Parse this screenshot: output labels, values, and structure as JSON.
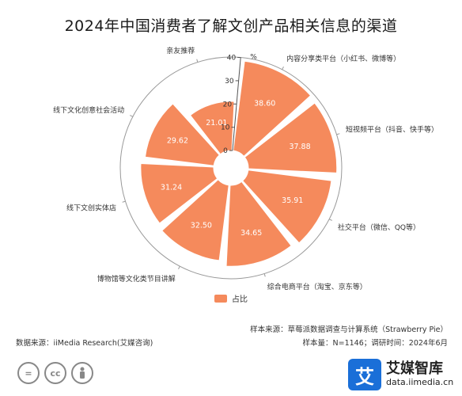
{
  "chart_data": {
    "type": "polar-bar",
    "title": "2024年中国消费者了解文创产品相关信息的渠道",
    "unit": "%",
    "categories": [
      "内容分享类平台（小红书、微博等）",
      "短视频平台（抖音、快手等）",
      "社交平台（微信、QQ等）",
      "综合电商平台（淘宝、京东等）",
      "博物馆等文化类节目讲解",
      "线下文创实体店",
      "线下文化创意社会活动",
      "亲友推荐"
    ],
    "series": [
      {
        "name": "占比",
        "values": [
          38.6,
          37.88,
          35.91,
          34.65,
          32.5,
          31.24,
          29.62,
          21.01
        ]
      }
    ],
    "value_labels": [
      "38.60",
      "37.88",
      "35.91",
      "34.65",
      "32.50",
      "31.24",
      "29.62",
      "21.01"
    ],
    "radial_ticks": [
      "0",
      "10",
      "20",
      "30",
      "40"
    ],
    "radial_range": [
      0,
      40
    ],
    "legend_position": "bottom",
    "grid": true,
    "colors": {
      "bar": "#F58A5C",
      "axis": "#555555",
      "ring": "#999999"
    }
  },
  "notes": {
    "sample_source": "样本来源：草莓派数据调查与计算系统（Strawberry Pie）",
    "data_source": "数据来源：iiMedia Research(艾媒咨询)",
    "sample_size": "样本量：N=1146；调研时间：2024年6月"
  },
  "brand": {
    "logo_char": "艾",
    "name": "艾媒智库",
    "url": "data.iimedia.cn",
    "color": "#1A6FD8"
  },
  "license_icons": [
    "equal-icon",
    "cc-icon",
    "person-icon"
  ]
}
